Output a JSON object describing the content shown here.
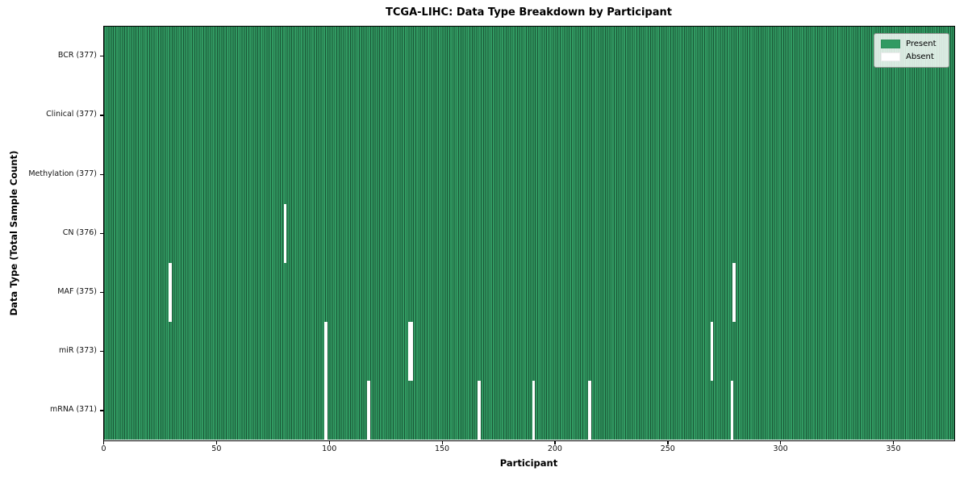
{
  "chart_data": {
    "type": "heatmap",
    "title": "TCGA-LIHC: Data Type Breakdown by Participant",
    "xlabel": "Participant",
    "ylabel": "Data Type (Total Sample Count)",
    "n_participants": 377,
    "xlim": [
      0,
      377
    ],
    "x_ticks": [
      0,
      50,
      100,
      150,
      200,
      250,
      300,
      350
    ],
    "legend": {
      "position": "upper right",
      "entries": [
        {
          "label": "Present",
          "color": "#319a62"
        },
        {
          "label": "Absent",
          "color": "#ffffff"
        }
      ]
    },
    "rows": [
      {
        "label": "BCR (377)",
        "data_type": "BCR",
        "present_count": 377,
        "absent_participants": []
      },
      {
        "label": "Clinical (377)",
        "data_type": "Clinical",
        "present_count": 377,
        "absent_participants": []
      },
      {
        "label": "Methylation (377)",
        "data_type": "Methylation",
        "present_count": 377,
        "absent_participants": []
      },
      {
        "label": "CN (376)",
        "data_type": "CN",
        "present_count": 376,
        "absent_participants": [
          80
        ]
      },
      {
        "label": "MAF (375)",
        "data_type": "MAF",
        "present_count": 375,
        "absent_participants": [
          29,
          279
        ]
      },
      {
        "label": "miR (373)",
        "data_type": "miR",
        "present_count": 373,
        "absent_participants": [
          98,
          135,
          136,
          269
        ]
      },
      {
        "label": "mRNA (371)",
        "data_type": "mRNA",
        "present_count": 371,
        "absent_participants": [
          98,
          117,
          166,
          190,
          215,
          278
        ]
      }
    ],
    "colors": {
      "present": "#319a62",
      "absent": "#ffffff",
      "cell_edge": "rgba(8, 30, 18, 0.55)",
      "row_separator": "#1a241c",
      "plot_border": "#000000"
    },
    "grid": "per-cell vertical edges visible"
  }
}
